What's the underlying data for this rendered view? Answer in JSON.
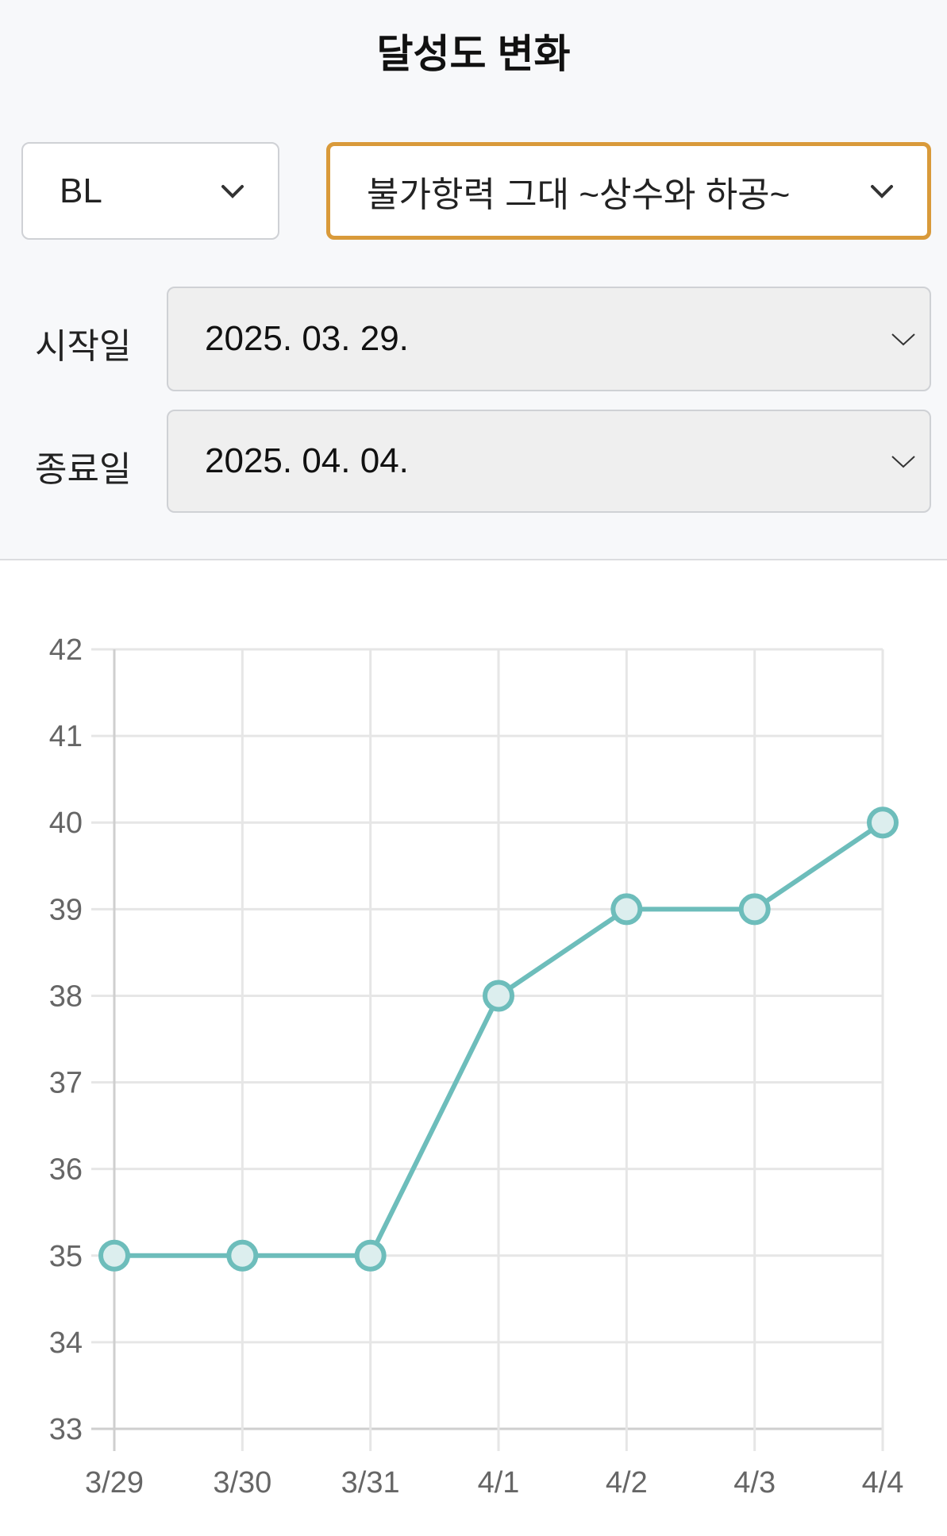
{
  "header": {
    "title": "달성도 변화"
  },
  "filters": {
    "category": "BL",
    "work": "불가항력 그대 ~상수와 하공~",
    "start_label": "시작일",
    "start_value": "2025. 03. 29.",
    "end_label": "종료일",
    "end_value": "2025. 04. 04.",
    "active_border_color": "#d99a3a"
  },
  "chart_data": {
    "type": "line",
    "categories": [
      "3/29",
      "3/30",
      "3/31",
      "4/1",
      "4/2",
      "4/3",
      "4/4"
    ],
    "values": [
      35,
      35,
      35,
      38,
      39,
      39,
      40
    ],
    "ylim": [
      33,
      42
    ],
    "yticks": [
      "33",
      "34",
      "35",
      "36",
      "37",
      "38",
      "39",
      "40",
      "41",
      "42"
    ],
    "grid": true,
    "color": "#6dbdbb",
    "title": "",
    "xlabel": "",
    "ylabel": ""
  }
}
